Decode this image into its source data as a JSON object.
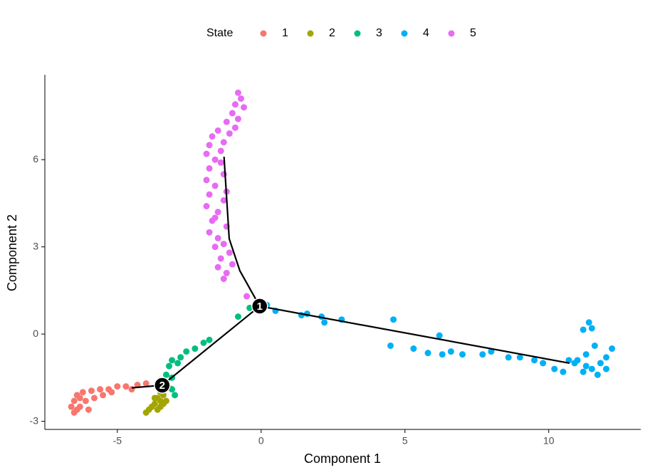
{
  "chart_data": {
    "type": "scatter",
    "xlabel": "Component 1",
    "ylabel": "Component 2",
    "legend_title": "State",
    "legend_position": "top",
    "xlim": [
      -7.52,
      13.2
    ],
    "ylim": [
      -3.28,
      8.92
    ],
    "xticks": [
      -5,
      0,
      5,
      10
    ],
    "yticks": [
      -3,
      0,
      3,
      6
    ],
    "grid": false,
    "series": [
      {
        "name": "1",
        "color": "#F8766D",
        "x": [
          -3.2,
          -3.6,
          -4.0,
          -4.3,
          -4.7,
          -5.0,
          -5.3,
          -5.6,
          -5.9,
          -6.2,
          -6.4,
          -6.5,
          -6.6,
          -6.5,
          -6.3,
          -6.1,
          -5.8,
          -5.5,
          -6.3,
          -6.0,
          -6.4,
          -5.2,
          -4.5
        ],
        "values": [
          -1.85,
          -1.8,
          -1.7,
          -1.75,
          -1.8,
          -1.8,
          -1.9,
          -1.9,
          -1.95,
          -2.0,
          -2.1,
          -2.3,
          -2.5,
          -2.7,
          -2.5,
          -2.3,
          -2.2,
          -2.1,
          -2.2,
          -2.6,
          -2.6,
          -2.0,
          -1.9
        ]
      },
      {
        "name": "2",
        "color": "#A3A500",
        "x": [
          -3.5,
          -3.4,
          -3.6,
          -3.5,
          -3.3,
          -3.7,
          -3.5,
          -3.8,
          -3.9,
          -3.6,
          -4.0,
          -3.4,
          -3.7
        ],
        "values": [
          -2.0,
          -2.1,
          -2.2,
          -2.3,
          -2.3,
          -2.4,
          -2.5,
          -2.5,
          -2.6,
          -2.6,
          -2.7,
          -2.4,
          -2.2
        ]
      },
      {
        "name": "3",
        "color": "#00BF7D",
        "x": [
          -0.8,
          -0.4,
          -1.8,
          -2.0,
          -2.3,
          -2.6,
          -2.8,
          -3.1,
          -3.2,
          -2.9,
          -3.3,
          -3.1,
          -3.1,
          -3.0
        ],
        "values": [
          0.6,
          0.9,
          -0.2,
          -0.3,
          -0.5,
          -0.6,
          -0.8,
          -0.9,
          -1.1,
          -1.0,
          -1.4,
          -1.5,
          -1.9,
          -2.1
        ]
      },
      {
        "name": "4",
        "color": "#00B0F6",
        "x": [
          0.2,
          0.5,
          1.4,
          1.6,
          2.1,
          2.2,
          2.8,
          4.6,
          4.5,
          5.3,
          5.8,
          6.2,
          6.3,
          6.6,
          7.0,
          7.7,
          8.0,
          8.6,
          9.0,
          9.5,
          9.8,
          10.2,
          10.5,
          10.9,
          11.2,
          11.5,
          11.8,
          12.0,
          12.2,
          11.3,
          11.6,
          11.5,
          11.4,
          11.2,
          11.0,
          11.7,
          12.0,
          11.3,
          10.7
        ],
        "values": [
          1.0,
          0.8,
          0.65,
          0.7,
          0.6,
          0.4,
          0.5,
          0.5,
          -0.4,
          -0.5,
          -0.65,
          -0.05,
          -0.7,
          -0.6,
          -0.7,
          -0.7,
          -0.6,
          -0.8,
          -0.8,
          -0.9,
          -1.0,
          -1.2,
          -1.3,
          -1.0,
          -1.3,
          -1.2,
          -1.0,
          -0.8,
          -0.5,
          -0.7,
          -0.4,
          0.2,
          0.4,
          0.15,
          -0.9,
          -1.4,
          -1.2,
          -1.1,
          -0.9
        ]
      },
      {
        "name": "5",
        "color": "#E76BF3",
        "x": [
          -0.8,
          -0.7,
          -0.9,
          -0.6,
          -1.0,
          -0.8,
          -1.2,
          -0.9,
          -1.5,
          -1.1,
          -1.7,
          -1.3,
          -1.8,
          -1.4,
          -1.9,
          -1.6,
          -1.8,
          -1.3,
          -1.9,
          -1.6,
          -1.8,
          -1.3,
          -1.9,
          -1.5,
          -1.7,
          -1.2,
          -1.8,
          -1.5,
          -1.6,
          -1.1,
          -1.4,
          -1.5,
          -1.2,
          -1.3,
          -1.0,
          -0.5,
          -1.4,
          -1.2,
          -1.6,
          -1.3
        ],
        "values": [
          8.3,
          8.1,
          7.9,
          7.8,
          7.6,
          7.4,
          7.3,
          7.1,
          7.0,
          6.9,
          6.8,
          6.6,
          6.5,
          6.3,
          6.2,
          6.0,
          5.7,
          5.5,
          5.3,
          5.1,
          4.8,
          4.6,
          4.4,
          4.2,
          3.9,
          3.7,
          3.5,
          3.3,
          3.0,
          2.8,
          2.6,
          2.3,
          2.1,
          1.9,
          2.4,
          1.3,
          5.9,
          4.9,
          4.0,
          3.1
        ]
      }
    ],
    "trajectory": [
      {
        "x": [
          -1.29,
          -1.11,
          -0.74,
          -0.05
        ],
        "y": [
          6.1,
          3.28,
          2.18,
          0.96
        ]
      },
      {
        "x": [
          -0.05,
          10.72
        ],
        "y": [
          0.96,
          -1.0
        ]
      },
      {
        "x": [
          -0.05,
          -3.44
        ],
        "y": [
          0.96,
          -1.76
        ]
      },
      {
        "x": [
          -3.44,
          -4.5
        ],
        "y": [
          -1.76,
          -1.85
        ]
      }
    ],
    "branch_points": [
      {
        "label": "1",
        "x": -0.05,
        "y": 0.96
      },
      {
        "label": "2",
        "x": -3.44,
        "y": -1.76
      }
    ]
  }
}
